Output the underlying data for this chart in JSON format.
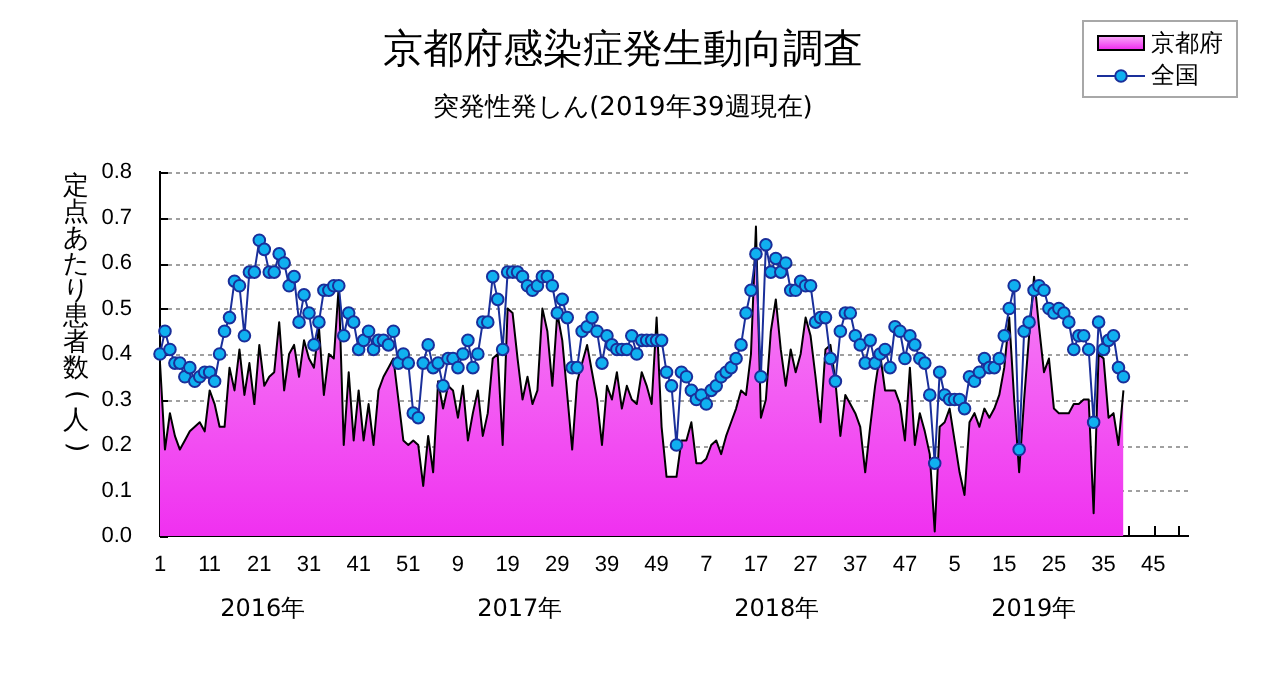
{
  "chart_data": {
    "type": "area",
    "title": "京都府感染症発生動向調査",
    "subtitle": "突発性発しん(2019年39週現在)",
    "ylabel": "定点あたり患者数(人)",
    "categories": [
      "1",
      null,
      null,
      null,
      null,
      null,
      null,
      null,
      null,
      null,
      "11",
      null,
      null,
      null,
      null,
      null,
      null,
      null,
      null,
      null,
      "21",
      null,
      null,
      null,
      null,
      null,
      null,
      null,
      null,
      null,
      "31",
      null,
      null,
      null,
      null,
      null,
      null,
      null,
      null,
      null,
      "41",
      null,
      null,
      null,
      null,
      null,
      null,
      null,
      null,
      null,
      "51",
      null,
      null,
      null,
      null,
      null,
      null,
      null,
      null,
      null,
      "9",
      null,
      null,
      null,
      null,
      null,
      null,
      null,
      null,
      null,
      "19",
      null,
      null,
      null,
      null,
      null,
      null,
      null,
      null,
      null,
      "29",
      null,
      null,
      null,
      null,
      null,
      null,
      null,
      null,
      null,
      "39",
      null,
      null,
      null,
      null,
      null,
      null,
      null,
      null,
      null,
      "49",
      null,
      null,
      null,
      null,
      null,
      null,
      null,
      null,
      null,
      "7",
      null,
      null,
      null,
      null,
      null,
      null,
      null,
      null,
      null,
      "17",
      null,
      null,
      null,
      null,
      null,
      null,
      null,
      null,
      null,
      "27",
      null,
      null,
      null,
      null,
      null,
      null,
      null,
      null,
      null,
      "37",
      null,
      null,
      null,
      null,
      null,
      null,
      null,
      null,
      null,
      "47",
      null,
      null,
      null,
      null,
      null,
      null,
      null,
      null,
      null,
      "5",
      null,
      null,
      null,
      null,
      null,
      null,
      null,
      null,
      null,
      "15",
      null,
      null,
      null,
      null,
      null,
      null,
      null,
      null,
      null,
      "25",
      null,
      null,
      null,
      null,
      null,
      null,
      null,
      null,
      null,
      "35",
      null,
      null,
      null,
      null,
      null,
      null,
      null,
      null,
      null,
      "45",
      null,
      null,
      null,
      null,
      null,
      null,
      null
    ],
    "series": [
      {
        "name": "京都府",
        "color": "#f030f0",
        "values": [
          0.38,
          0.19,
          0.27,
          0.22,
          0.19,
          0.21,
          0.23,
          0.24,
          0.25,
          0.23,
          0.32,
          0.29,
          0.24,
          0.24,
          0.37,
          0.32,
          0.41,
          0.31,
          0.38,
          0.29,
          0.42,
          0.33,
          0.35,
          0.36,
          0.47,
          0.32,
          0.4,
          0.42,
          0.35,
          0.43,
          0.39,
          0.37,
          0.46,
          0.31,
          0.4,
          0.39,
          0.55,
          0.2,
          0.36,
          0.21,
          0.32,
          0.21,
          0.29,
          0.2,
          0.32,
          0.35,
          0.37,
          0.39,
          0.3,
          0.21,
          0.2,
          0.21,
          0.2,
          0.11,
          0.22,
          0.14,
          0.34,
          0.28,
          0.33,
          0.32,
          0.26,
          0.33,
          0.21,
          0.27,
          0.32,
          0.22,
          0.27,
          0.39,
          0.4,
          0.2,
          0.5,
          0.49,
          0.39,
          0.3,
          0.35,
          0.29,
          0.32,
          0.5,
          0.45,
          0.33,
          0.49,
          0.43,
          0.31,
          0.19,
          0.34,
          0.38,
          0.42,
          0.36,
          0.3,
          0.2,
          0.33,
          0.3,
          0.36,
          0.28,
          0.33,
          0.3,
          0.29,
          0.36,
          0.33,
          0.29,
          0.48,
          0.24,
          0.13,
          0.13,
          0.13,
          0.21,
          0.21,
          0.25,
          0.16,
          0.16,
          0.17,
          0.2,
          0.21,
          0.18,
          0.22,
          0.25,
          0.28,
          0.32,
          0.31,
          0.4,
          0.68,
          0.26,
          0.3,
          0.45,
          0.52,
          0.41,
          0.33,
          0.41,
          0.36,
          0.4,
          0.48,
          0.44,
          0.35,
          0.25,
          0.41,
          0.42,
          0.34,
          0.22,
          0.31,
          0.29,
          0.27,
          0.24,
          0.14,
          0.24,
          0.33,
          0.4,
          0.32,
          0.32,
          0.32,
          0.29,
          0.21,
          0.37,
          0.2,
          0.27,
          0.23,
          0.18,
          0.01,
          0.24,
          0.25,
          0.28,
          0.21,
          0.14,
          0.09,
          0.25,
          0.27,
          0.24,
          0.28,
          0.26,
          0.28,
          0.31,
          0.37,
          0.48,
          0.3,
          0.14,
          0.3,
          0.44,
          0.57,
          0.46,
          0.36,
          0.39,
          0.28,
          0.27,
          0.27,
          0.27,
          0.29,
          0.29,
          0.3,
          0.3,
          0.05,
          0.4,
          0.39,
          0.26,
          0.27,
          0.2,
          0.32,
          null,
          null,
          null,
          null,
          null,
          null,
          null,
          null,
          null,
          null,
          null,
          null,
          null
        ]
      },
      {
        "name": "全国",
        "type": "line",
        "marker": "circle",
        "color": "#10b0f0",
        "values": [
          0.4,
          0.45,
          0.41,
          0.38,
          0.38,
          0.35,
          0.37,
          0.34,
          0.35,
          0.36,
          0.36,
          0.34,
          0.4,
          0.45,
          0.48,
          0.56,
          0.55,
          0.44,
          0.58,
          0.58,
          0.65,
          0.63,
          0.58,
          0.58,
          0.62,
          0.6,
          0.55,
          0.57,
          0.47,
          0.53,
          0.49,
          0.42,
          0.47,
          0.54,
          0.54,
          0.55,
          0.55,
          0.44,
          0.49,
          0.47,
          0.41,
          0.43,
          0.45,
          0.41,
          0.43,
          0.43,
          0.42,
          0.45,
          0.38,
          0.4,
          0.38,
          0.27,
          0.26,
          0.38,
          0.42,
          0.37,
          0.38,
          0.33,
          0.39,
          0.39,
          0.37,
          0.4,
          0.43,
          0.37,
          0.4,
          0.47,
          0.47,
          0.57,
          0.52,
          0.41,
          0.58,
          0.58,
          0.58,
          0.57,
          0.55,
          0.54,
          0.55,
          0.57,
          0.57,
          0.55,
          0.49,
          0.52,
          0.48,
          0.37,
          0.37,
          0.45,
          0.46,
          0.48,
          0.45,
          0.38,
          0.44,
          0.42,
          0.41,
          0.41,
          0.41,
          0.44,
          0.4,
          0.43,
          0.43,
          0.43,
          0.43,
          0.43,
          0.36,
          0.33,
          0.2,
          0.36,
          0.35,
          0.32,
          0.3,
          0.31,
          0.29,
          0.32,
          0.33,
          0.35,
          0.36,
          0.37,
          0.39,
          0.42,
          0.49,
          0.54,
          0.62,
          0.35,
          0.64,
          0.58,
          0.61,
          0.58,
          0.6,
          0.54,
          0.54,
          0.56,
          0.55,
          0.55,
          0.47,
          0.48,
          0.48,
          0.39,
          0.34,
          0.45,
          0.49,
          0.49,
          0.44,
          0.42,
          0.38,
          0.43,
          0.38,
          0.4,
          0.41,
          0.37,
          0.46,
          0.45,
          0.39,
          0.44,
          0.42,
          0.39,
          0.38,
          0.31,
          0.16,
          0.36,
          0.31,
          0.3,
          0.3,
          0.3,
          0.28,
          0.35,
          0.34,
          0.36,
          0.39,
          0.37,
          0.37,
          0.39,
          0.44,
          0.5,
          0.55,
          0.19,
          0.45,
          0.47,
          0.54,
          0.55,
          0.54,
          0.5,
          0.49,
          0.5,
          0.49,
          0.47,
          0.41,
          0.44,
          0.44,
          0.41,
          0.25,
          0.47,
          0.41,
          0.43,
          0.44,
          0.37,
          0.35,
          null,
          null,
          null,
          null,
          null,
          null,
          null,
          null,
          null,
          null,
          null,
          null,
          null
        ]
      }
    ],
    "ylim": [
      0,
      0.8
    ],
    "yticks": [
      {
        "value": 0,
        "label": "0.0"
      },
      0.1,
      0.2,
      0.3,
      0.4,
      0.5,
      0.6,
      0.7,
      0.8
    ],
    "grid": "y",
    "legend": "top right",
    "annotations": [
      "2016年",
      "2017年",
      "2018年",
      "2019年"
    ]
  }
}
